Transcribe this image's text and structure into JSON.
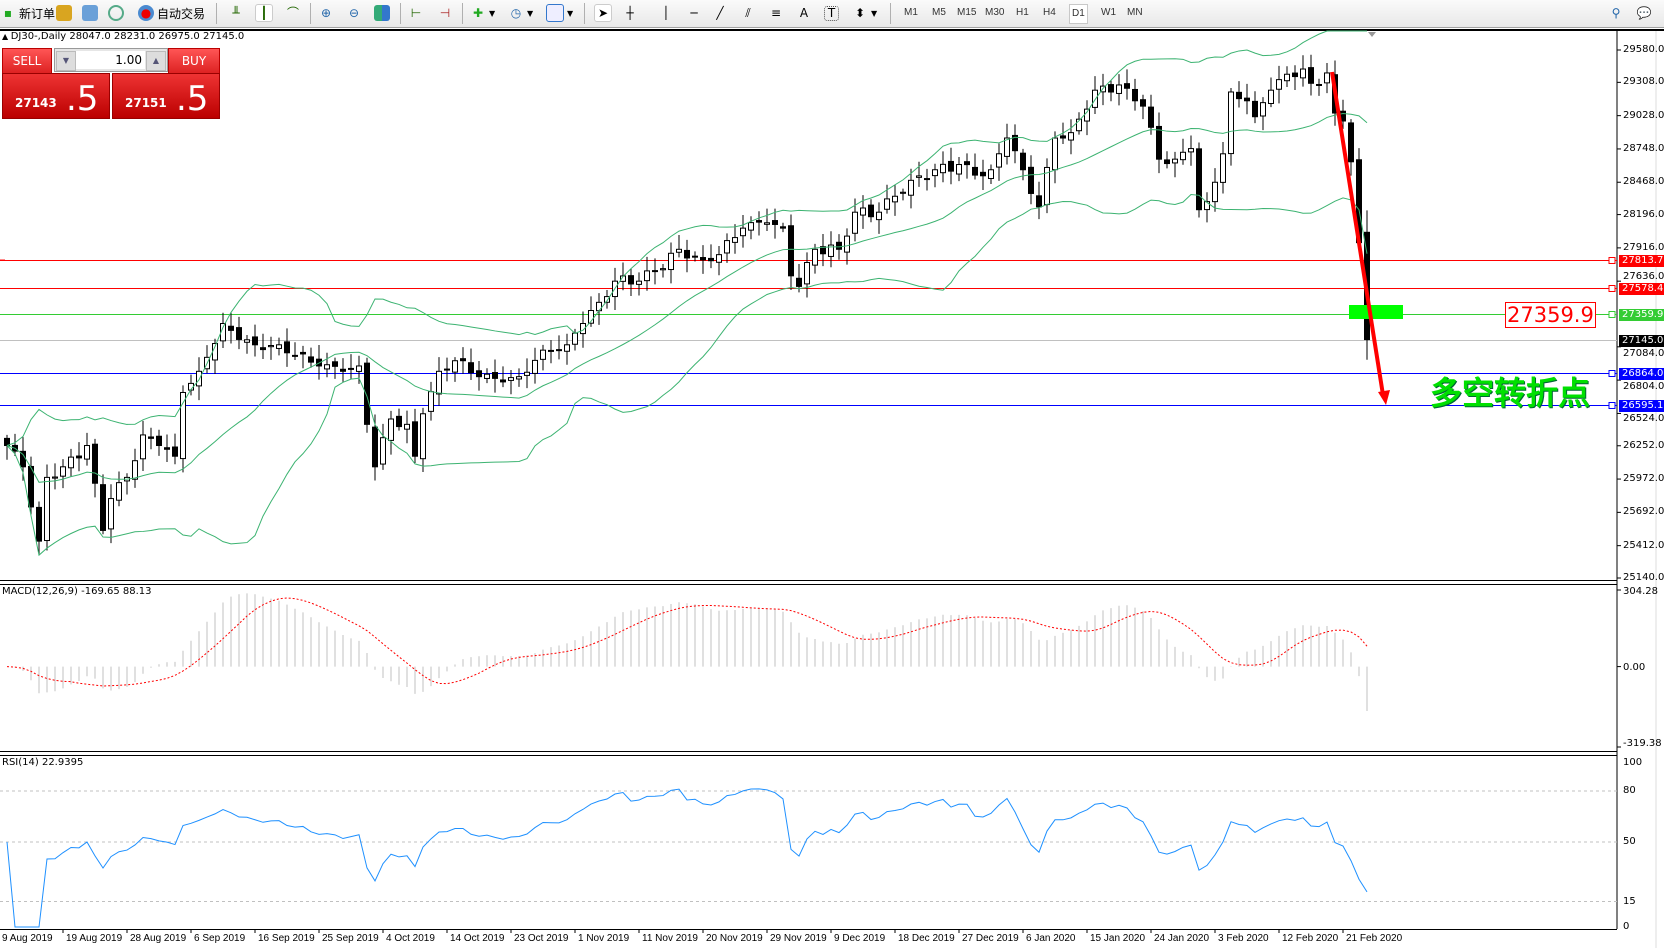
{
  "toolbar": {
    "new_order": "新订单",
    "auto_trading": "自动交易",
    "timeframes": [
      "M1",
      "M5",
      "M15",
      "M30",
      "H1",
      "H4",
      "D1",
      "W1",
      "MN"
    ],
    "active_timeframe": "D1"
  },
  "chart": {
    "header": "DJ30-,Daily  28047.0 28231.0 26975.0 27145.0",
    "symbol": "DJ30-",
    "period": "Daily"
  },
  "trade_panel": {
    "sell_label": "SELL",
    "buy_label": "BUY",
    "lot": "1.00",
    "sell_main": "27143",
    "sell_frac": ".5",
    "buy_main": "27151",
    "buy_frac": ".5"
  },
  "price_axis": [
    "29580.0",
    "29308.0",
    "29028.0",
    "28748.0",
    "28468.0",
    "28196.0",
    "27916.0",
    "27636.0",
    "27084.0",
    "26804.0",
    "26524.0",
    "26252.0",
    "25972.0",
    "25692.0",
    "25412.0",
    "25140.0"
  ],
  "levels": [
    {
      "value": "27813.7",
      "color": "#ff0000"
    },
    {
      "value": "27578.4",
      "color": "#ff0000"
    },
    {
      "value": "27359.9",
      "color": "#33cc33"
    },
    {
      "value": "27145.0",
      "color": "#000000",
      "line": "#c0c0c0"
    },
    {
      "value": "26864.0",
      "color": "#0000ff"
    },
    {
      "value": "26595.1",
      "color": "#0000ff"
    }
  ],
  "annotations": {
    "price_label": "27359.9",
    "note": "多空转折点",
    "arrow_color": "#ff0000",
    "box_color": "#00ff00"
  },
  "macd": {
    "title": "MACD(12,26,9) -169.65 88.13",
    "axis": [
      "304.28",
      "0.00",
      "-319.38"
    ]
  },
  "rsi": {
    "title": "RSI(14) 22.9395",
    "axis": [
      "100",
      "80",
      "50",
      "15",
      "0"
    ],
    "color": "#1e90ff"
  },
  "dates": [
    "9 Aug 2019",
    "19 Aug 2019",
    "28 Aug 2019",
    "6 Sep 2019",
    "16 Sep 2019",
    "25 Sep 2019",
    "4 Oct 2019",
    "14 Oct 2019",
    "23 Oct 2019",
    "1 Nov 2019",
    "11 Nov 2019",
    "20 Nov 2019",
    "29 Nov 2019",
    "9 Dec 2019",
    "18 Dec 2019",
    "27 Dec 2019",
    "6 Jan 2020",
    "15 Jan 2020",
    "24 Jan 2020",
    "3 Feb 2020",
    "12 Feb 2020",
    "21 Feb 2020"
  ],
  "chart_data": {
    "type": "candlestick",
    "price_range": [
      25140,
      29580
    ],
    "last_bar": {
      "open": 28047.0,
      "high": 28231.0,
      "low": 26975.0,
      "close": 27145.0
    },
    "key_closes": [
      [
        0,
        26254
      ],
      [
        2,
        26075
      ],
      [
        4,
        25450
      ],
      [
        5,
        25986
      ],
      [
        7,
        26075
      ],
      [
        10,
        26254
      ],
      [
        12,
        25540
      ],
      [
        13,
        25808
      ],
      [
        15,
        25986
      ],
      [
        17,
        26343
      ],
      [
        19,
        26254
      ],
      [
        21,
        26164
      ],
      [
        22,
        26700
      ],
      [
        24,
        26878
      ],
      [
        27,
        27280
      ],
      [
        29,
        27146
      ],
      [
        31,
        27101
      ],
      [
        34,
        27101
      ],
      [
        36,
        27012
      ],
      [
        39,
        26923
      ],
      [
        42,
        26878
      ],
      [
        44,
        26923
      ],
      [
        45,
        26432
      ],
      [
        46,
        26075
      ],
      [
        48,
        26477
      ],
      [
        50,
        26432
      ],
      [
        51,
        26164
      ],
      [
        52,
        26521
      ],
      [
        54,
        26878
      ],
      [
        56,
        26967
      ],
      [
        59,
        26833
      ],
      [
        62,
        26789
      ],
      [
        64,
        26833
      ],
      [
        67,
        27056
      ],
      [
        70,
        27101
      ],
      [
        72,
        27280
      ],
      [
        74,
        27458
      ],
      [
        76,
        27636
      ],
      [
        79,
        27636
      ],
      [
        81,
        27725
      ],
      [
        84,
        27904
      ],
      [
        87,
        27815
      ],
      [
        89,
        27859
      ],
      [
        92,
        28082
      ],
      [
        95,
        28127
      ],
      [
        97,
        28082
      ],
      [
        98,
        27681
      ],
      [
        99,
        27592
      ],
      [
        101,
        27904
      ],
      [
        104,
        27904
      ],
      [
        106,
        28216
      ],
      [
        109,
        28216
      ],
      [
        111,
        28350
      ],
      [
        113,
        28484
      ],
      [
        116,
        28573
      ],
      [
        119,
        28617
      ],
      [
        121,
        28528
      ],
      [
        123,
        28573
      ],
      [
        125,
        28840
      ],
      [
        127,
        28573
      ],
      [
        129,
        28261
      ],
      [
        131,
        28840
      ],
      [
        133,
        28885
      ],
      [
        136,
        29242
      ],
      [
        139,
        29286
      ],
      [
        141,
        29153
      ],
      [
        142,
        29108
      ],
      [
        144,
        28662
      ],
      [
        146,
        28662
      ],
      [
        148,
        28751
      ],
      [
        149,
        28237
      ],
      [
        150,
        28305
      ],
      [
        152,
        28707
      ],
      [
        153,
        29227
      ],
      [
        155,
        29153
      ],
      [
        156,
        29019
      ],
      [
        158,
        29242
      ],
      [
        160,
        29376
      ],
      [
        162,
        29420
      ],
      [
        163,
        29300
      ],
      [
        164,
        29290
      ],
      [
        165,
        29387
      ],
      [
        166,
        29050
      ],
      [
        167,
        28983
      ],
      [
        168,
        28640
      ],
      [
        169,
        27960
      ],
      [
        170,
        27145
      ]
    ],
    "indicators": [
      "Bollinger Bands(20,2)",
      "MACD(12,26,9)",
      "RSI(14)"
    ]
  }
}
